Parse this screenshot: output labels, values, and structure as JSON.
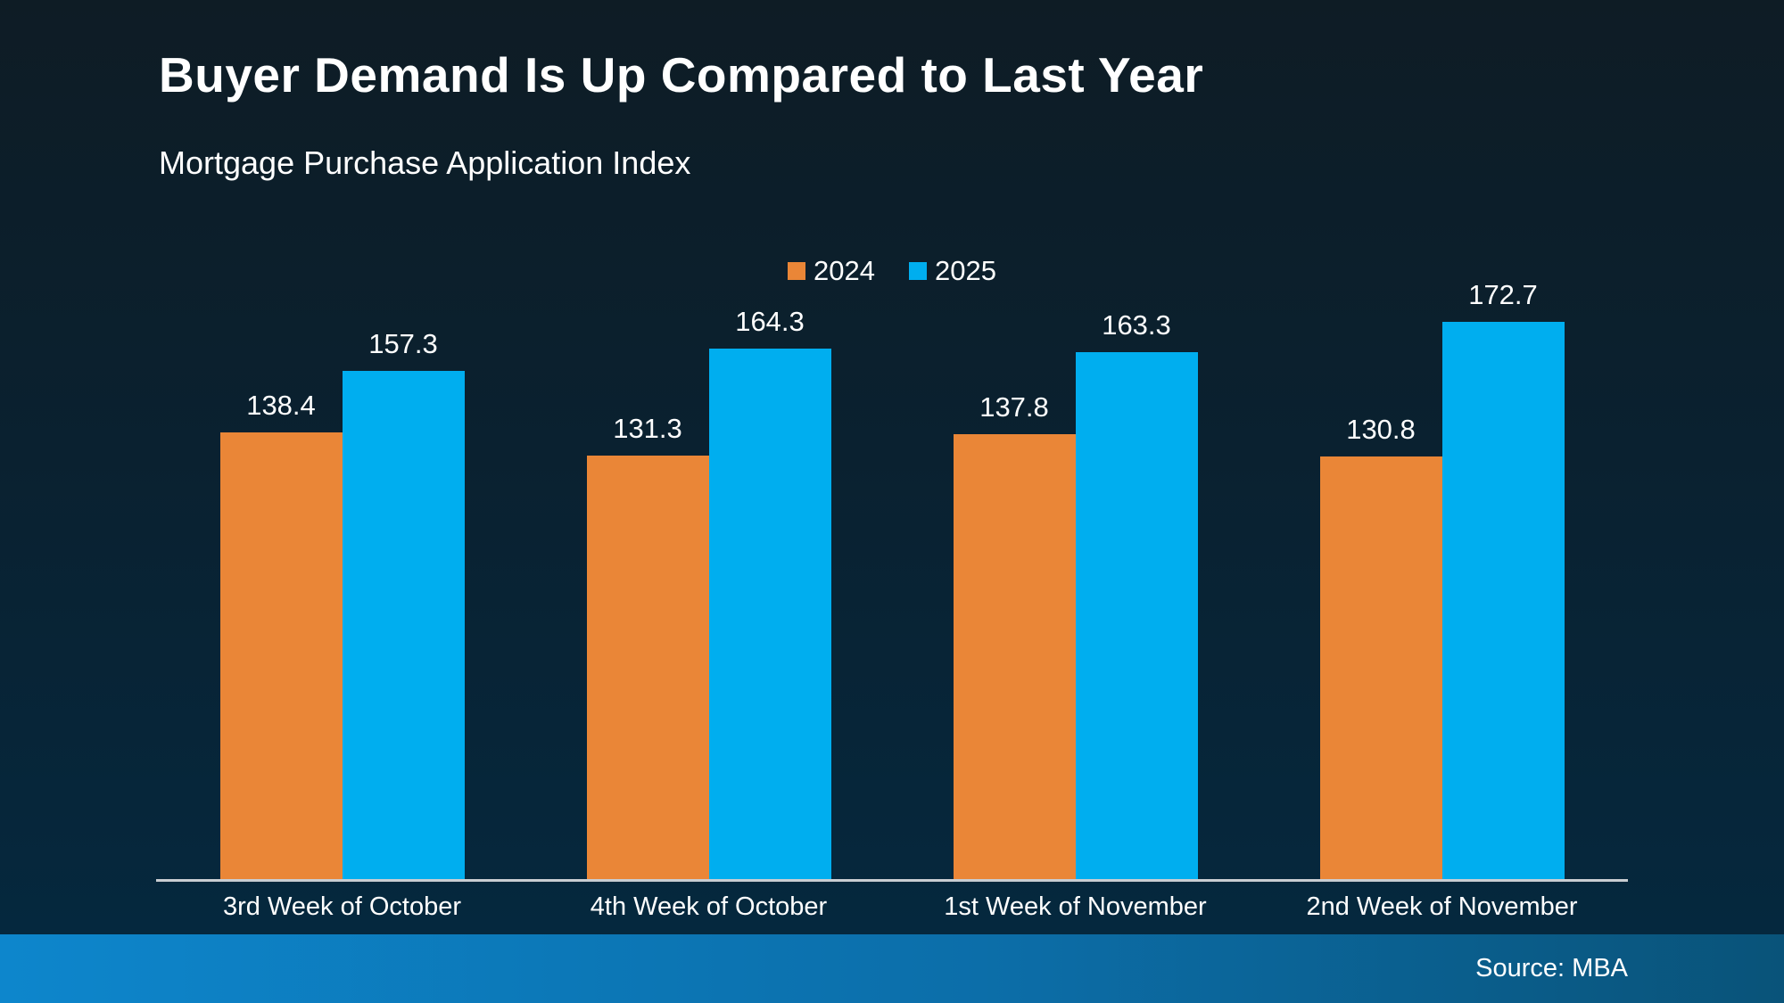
{
  "header": {
    "title": "Buyer Demand Is Up Compared to Last Year",
    "subtitle": "Mortgage Purchase Application Index"
  },
  "chart_data": {
    "type": "bar",
    "title": "Buyer Demand Is Up Compared to Last Year",
    "subtitle": "Mortgage Purchase Application Index",
    "categories": [
      "3rd Week of October",
      "4th Week of October",
      "1st Week of November",
      "2nd Week of November"
    ],
    "series": [
      {
        "name": "2024",
        "color": "#EA8637",
        "values": [
          138.4,
          131.3,
          137.8,
          130.8
        ]
      },
      {
        "name": "2025",
        "color": "#00AEEF",
        "values": [
          157.3,
          164.3,
          163.3,
          172.7
        ]
      }
    ],
    "xlabel": "",
    "ylabel": "",
    "ylim": [
      0,
      190
    ],
    "grid": false,
    "y_axis_visible": false,
    "legend_position": "top-center",
    "value_labels": true
  },
  "footer": {
    "source": "Source: MBA"
  },
  "colors": {
    "series_2024": "#EA8637",
    "series_2025": "#00AEEF",
    "background_top": "#0E1C25",
    "background_bottom": "#042940",
    "footer_gradient_left": "#0D86CC",
    "footer_gradient_right": "#095379",
    "axis_line": "#C9CDD2",
    "text": "#FFFFFF"
  }
}
